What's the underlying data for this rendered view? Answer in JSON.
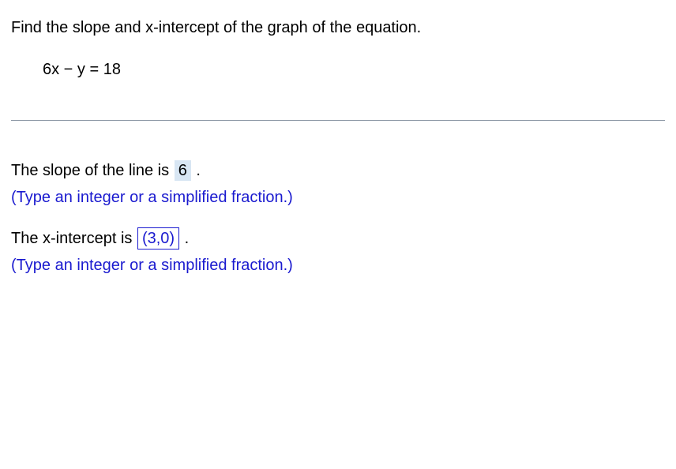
{
  "question": {
    "prompt": "Find the slope and x-intercept of the graph of the equation.",
    "equation": "6x − y = 18"
  },
  "answers": {
    "slope": {
      "prefix": "The slope of the line is ",
      "value": "6",
      "suffix": " .",
      "hint": "(Type an integer or a simplified fraction.)"
    },
    "xintercept": {
      "prefix": "The x-intercept is ",
      "value": "(3,0)",
      "suffix": " .",
      "hint": "(Type an integer or a simplified fraction.)"
    }
  },
  "colors": {
    "text": "#000000",
    "hint": "#1a1acf",
    "divider": "#8d99a6",
    "highlight_bg": "#d8e6f3",
    "outline": "#1a1acf",
    "background": "#ffffff"
  },
  "typography": {
    "font_family": "Arial",
    "font_size_pt": 15
  }
}
